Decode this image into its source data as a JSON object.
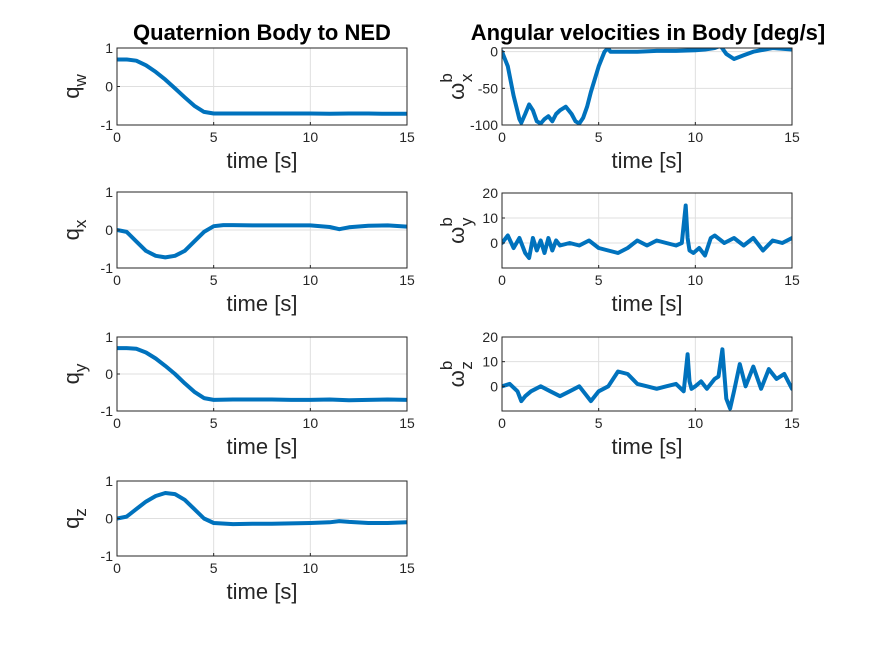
{
  "figure": {
    "left_title": "Quaternion Body to NED",
    "right_title": "Angular velocities in Body [deg/s]"
  },
  "chart_data": [
    {
      "type": "line",
      "id": "qw",
      "ylabel": "q",
      "ylabel_sub": "w",
      "ylabel_sup": "",
      "xlabel": "time [s]",
      "xlim": [
        0,
        15
      ],
      "ylim": [
        -1,
        1
      ],
      "xticks": [
        0,
        5,
        10,
        15
      ],
      "yticks": [
        -1,
        0,
        1
      ],
      "grid": true,
      "color": "#0072BD",
      "series": [
        {
          "x": [
            0,
            0.5,
            1,
            1.5,
            2,
            2.5,
            3,
            3.5,
            4,
            4.5,
            5,
            6,
            7,
            8,
            9,
            10,
            11,
            12,
            13,
            14,
            15
          ],
          "y": [
            0.7,
            0.7,
            0.67,
            0.55,
            0.38,
            0.18,
            -0.05,
            -0.28,
            -0.5,
            -0.66,
            -0.7,
            -0.7,
            -0.7,
            -0.7,
            -0.7,
            -0.7,
            -0.71,
            -0.7,
            -0.7,
            -0.71,
            -0.71
          ]
        }
      ]
    },
    {
      "type": "line",
      "id": "qx",
      "ylabel": "q",
      "ylabel_sub": "x",
      "ylabel_sup": "",
      "xlabel": "time [s]",
      "xlim": [
        0,
        15
      ],
      "ylim": [
        -1,
        1
      ],
      "xticks": [
        0,
        5,
        10,
        15
      ],
      "yticks": [
        -1,
        0,
        1
      ],
      "grid": true,
      "color": "#0072BD",
      "series": [
        {
          "x": [
            0,
            0.5,
            1,
            1.5,
            2,
            2.5,
            3,
            3.5,
            4,
            4.5,
            5,
            5.5,
            6,
            7,
            8,
            9,
            10,
            11,
            11.5,
            12,
            13,
            14,
            15
          ],
          "y": [
            0,
            -0.05,
            -0.3,
            -0.55,
            -0.68,
            -0.72,
            -0.68,
            -0.55,
            -0.3,
            -0.05,
            0.1,
            0.13,
            0.13,
            0.12,
            0.12,
            0.12,
            0.12,
            0.08,
            0.02,
            0.07,
            0.11,
            0.12,
            0.09
          ]
        }
      ]
    },
    {
      "type": "line",
      "id": "qy",
      "ylabel": "q",
      "ylabel_sub": "y",
      "ylabel_sup": "",
      "xlabel": "time [s]",
      "xlim": [
        0,
        15
      ],
      "ylim": [
        -1,
        1
      ],
      "xticks": [
        0,
        5,
        10,
        15
      ],
      "yticks": [
        -1,
        0,
        1
      ],
      "grid": true,
      "color": "#0072BD",
      "series": [
        {
          "x": [
            0,
            0.5,
            1,
            1.5,
            2,
            2.5,
            3,
            3.5,
            4,
            4.5,
            5,
            6,
            7,
            8,
            9,
            10,
            11,
            12,
            13,
            14,
            15
          ],
          "y": [
            0.7,
            0.7,
            0.68,
            0.58,
            0.42,
            0.22,
            0.0,
            -0.25,
            -0.48,
            -0.65,
            -0.7,
            -0.69,
            -0.69,
            -0.69,
            -0.7,
            -0.7,
            -0.69,
            -0.71,
            -0.7,
            -0.69,
            -0.7
          ]
        }
      ]
    },
    {
      "type": "line",
      "id": "qz",
      "ylabel": "q",
      "ylabel_sub": "z",
      "ylabel_sup": "",
      "xlabel": "time [s]",
      "xlim": [
        0,
        15
      ],
      "ylim": [
        -1,
        1
      ],
      "xticks": [
        0,
        5,
        10,
        15
      ],
      "yticks": [
        -1,
        0,
        1
      ],
      "grid": true,
      "color": "#0072BD",
      "series": [
        {
          "x": [
            0,
            0.5,
            1,
            1.5,
            2,
            2.5,
            3,
            3.5,
            4,
            4.5,
            5,
            6,
            7,
            8,
            9,
            10,
            11,
            11.5,
            12,
            13,
            14,
            15
          ],
          "y": [
            0,
            0.05,
            0.25,
            0.45,
            0.6,
            0.68,
            0.65,
            0.5,
            0.25,
            0.0,
            -0.12,
            -0.15,
            -0.14,
            -0.14,
            -0.13,
            -0.12,
            -0.1,
            -0.07,
            -0.09,
            -0.12,
            -0.12,
            -0.1
          ]
        }
      ]
    },
    {
      "type": "line",
      "id": "wx",
      "ylabel": "ω",
      "ylabel_sub": "x",
      "ylabel_sup": "b",
      "xlabel": "time [s]",
      "xlim": [
        0,
        15
      ],
      "ylim": [
        -100,
        5
      ],
      "xticks": [
        0,
        5,
        10,
        15
      ],
      "yticks": [
        -100,
        -50,
        0
      ],
      "grid": true,
      "color": "#0072BD",
      "series": [
        {
          "x": [
            0,
            0.3,
            0.6,
            0.9,
            1.0,
            1.2,
            1.4,
            1.6,
            1.8,
            2.0,
            2.2,
            2.4,
            2.6,
            2.8,
            3.0,
            3.3,
            3.6,
            3.8,
            4.0,
            4.2,
            4.4,
            4.6,
            5.0,
            5.3,
            5.5,
            5.6,
            6,
            7,
            8,
            9,
            10,
            10.5,
            11,
            11.3,
            11.6,
            12,
            12.5,
            13,
            14,
            15
          ],
          "y": [
            0,
            -20,
            -60,
            -92,
            -97,
            -85,
            -72,
            -80,
            -95,
            -98,
            -92,
            -88,
            -95,
            -85,
            -80,
            -75,
            -85,
            -95,
            -98,
            -90,
            -75,
            -55,
            -20,
            0,
            5,
            0,
            0,
            0,
            1,
            1,
            2,
            3,
            5,
            8,
            -3,
            -10,
            -5,
            0,
            5,
            3
          ]
        }
      ]
    },
    {
      "type": "line",
      "id": "wy",
      "ylabel": "ω",
      "ylabel_sub": "y",
      "ylabel_sup": "b",
      "xlabel": "time [s]",
      "xlim": [
        0,
        15
      ],
      "ylim": [
        -10,
        20
      ],
      "xticks": [
        0,
        5,
        10,
        15
      ],
      "yticks": [
        0,
        10,
        20
      ],
      "grid": true,
      "color": "#0072BD",
      "series": [
        {
          "x": [
            0,
            0.3,
            0.6,
            0.9,
            1.2,
            1.4,
            1.6,
            1.8,
            2.0,
            2.2,
            2.4,
            2.6,
            2.8,
            3.0,
            3.5,
            4.0,
            4.5,
            5.0,
            5.5,
            6.0,
            6.5,
            7,
            7.5,
            8,
            8.5,
            9,
            9.3,
            9.5,
            9.6,
            9.7,
            9.9,
            10.2,
            10.5,
            10.8,
            11,
            11.5,
            12,
            12.5,
            13,
            13.5,
            14,
            14.5,
            15
          ],
          "y": [
            0,
            3,
            -2,
            2,
            -4,
            -6,
            2,
            -3,
            1,
            -4,
            2,
            -3,
            1,
            -1,
            0,
            -1,
            1,
            -2,
            -3,
            -4,
            -2,
            1,
            -1,
            1,
            0,
            -1,
            0,
            15,
            2,
            -3,
            -4,
            -2,
            -5,
            2,
            3,
            0,
            2,
            -1,
            2,
            -3,
            1,
            0,
            2
          ]
        }
      ]
    },
    {
      "type": "line",
      "id": "wz",
      "ylabel": "ω",
      "ylabel_sub": "z",
      "ylabel_sup": "b",
      "xlabel": "time [s]",
      "xlim": [
        0,
        15
      ],
      "ylim": [
        -10,
        20
      ],
      "xticks": [
        0,
        5,
        10,
        15
      ],
      "yticks": [
        0,
        10,
        20
      ],
      "grid": true,
      "color": "#0072BD",
      "series": [
        {
          "x": [
            0,
            0.4,
            0.8,
            1.0,
            1.2,
            1.5,
            2.0,
            2.5,
            3.0,
            3.5,
            4.0,
            4.3,
            4.6,
            5.0,
            5.5,
            6.0,
            6.5,
            7,
            7.5,
            8,
            8.5,
            9,
            9.4,
            9.6,
            9.7,
            9.8,
            10,
            10.3,
            10.6,
            11,
            11.2,
            11.4,
            11.6,
            11.8,
            12,
            12.3,
            12.6,
            13,
            13.4,
            13.8,
            14.2,
            14.6,
            15
          ],
          "y": [
            0,
            1,
            -2,
            -6,
            -4,
            -2,
            0,
            -2,
            -4,
            -2,
            0,
            -3,
            -6,
            -2,
            0,
            6,
            5,
            1,
            0,
            -1,
            0,
            1,
            -2,
            13,
            2,
            -1,
            0,
            2,
            -1,
            3,
            4,
            15,
            -5,
            -9,
            -2,
            9,
            0,
            8,
            -1,
            7,
            3,
            5,
            -1
          ]
        }
      ]
    }
  ]
}
